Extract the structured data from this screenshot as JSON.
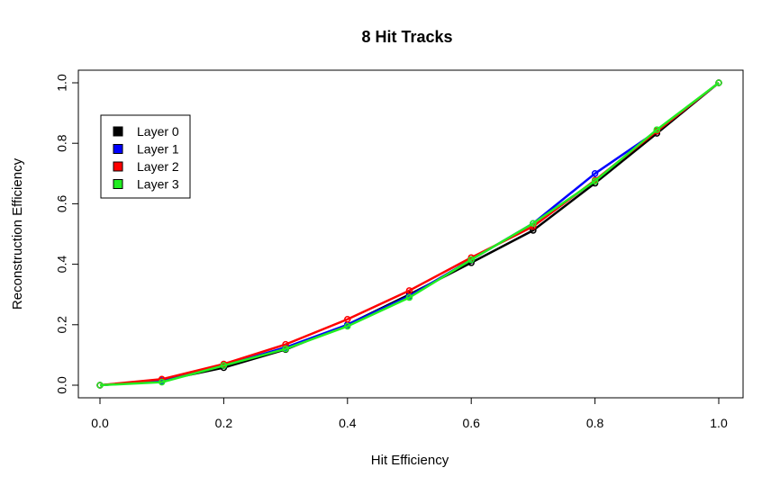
{
  "chart_data": {
    "type": "line",
    "title": "8 Hit Tracks",
    "xlabel": "Hit Efficiency",
    "ylabel": "Reconstruction Efficiency",
    "xlim": [
      0,
      1
    ],
    "ylim": [
      0,
      1
    ],
    "xticks": [
      "0.0",
      "0.2",
      "0.4",
      "0.6",
      "0.8",
      "1.0"
    ],
    "yticks": [
      "0.0",
      "0.2",
      "0.4",
      "0.6",
      "0.8",
      "1.0"
    ],
    "grid": false,
    "legend_position": "top-left",
    "x": [
      0.0,
      0.1,
      0.2,
      0.3,
      0.4,
      0.5,
      0.6,
      0.7,
      0.8,
      0.9,
      1.0
    ],
    "series": [
      {
        "name": "Layer 0",
        "color": "#000000",
        "values": [
          0.0,
          0.015,
          0.058,
          0.118,
          0.2,
          0.3,
          0.405,
          0.512,
          0.668,
          0.833,
          1.0
        ]
      },
      {
        "name": "Layer 1",
        "color": "#0000ff",
        "values": [
          0.0,
          0.015,
          0.065,
          0.125,
          0.2,
          0.295,
          0.415,
          0.535,
          0.7,
          0.84,
          1.0
        ]
      },
      {
        "name": "Layer 2",
        "color": "#ff0000",
        "values": [
          0.0,
          0.02,
          0.07,
          0.135,
          0.218,
          0.313,
          0.422,
          0.525,
          0.678,
          0.84,
          1.0
        ]
      },
      {
        "name": "Layer 3",
        "color": "#22ee22",
        "values": [
          0.0,
          0.01,
          0.065,
          0.12,
          0.195,
          0.29,
          0.415,
          0.535,
          0.675,
          0.845,
          1.0
        ]
      }
    ]
  }
}
